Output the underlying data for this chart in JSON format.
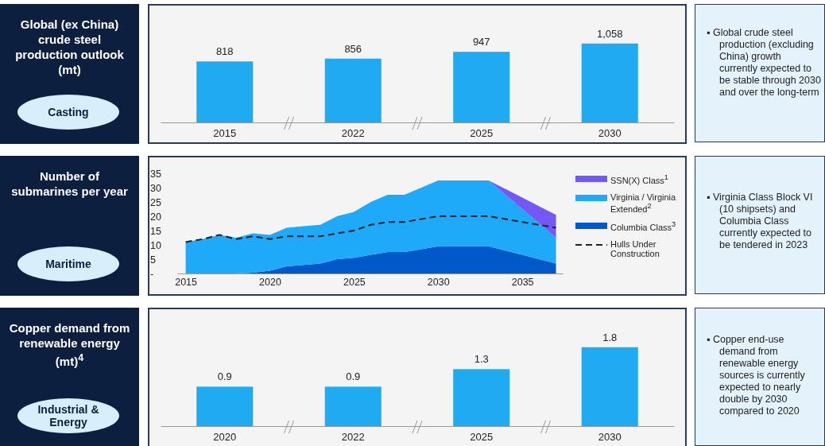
{
  "chart_data": [
    {
      "type": "bar",
      "title": "Global (ex China) crude steel production outlook (mt)",
      "categories": [
        "2015",
        "2022",
        "2025",
        "2030"
      ],
      "values": [
        818,
        856,
        947,
        1058
      ],
      "value_labels": [
        "818",
        "856",
        "947",
        "1,058"
      ],
      "color": "#20aaf2",
      "annotations": [
        "Casting",
        "▪ Global crude steel production (excluding China) growth currently expected to be stable through 2030 and over the long-term"
      ]
    },
    {
      "type": "area",
      "title": "Number of submarines per year",
      "stacked": true,
      "legend": "right",
      "marker": "none",
      "x": [
        2015,
        2016,
        2017,
        2018,
        2019,
        2020,
        2021,
        2022,
        2023,
        2024,
        2025,
        2026,
        2027,
        2028,
        2029,
        2030,
        2031,
        2032,
        2033,
        2034,
        2035,
        2036,
        2037
      ],
      "xlim": [
        2014.5,
        2037.4
      ],
      "xticks": [
        2015,
        2020,
        2025,
        2030,
        2035
      ],
      "ylim": [
        0,
        35
      ],
      "yticks": [
        {
          "value": 0,
          "label": "-"
        },
        5,
        10,
        15,
        20,
        25,
        30,
        35
      ],
      "series": [
        {
          "name": "Columbia Class$^{3}$",
          "color": "#0058c9",
          "values": [
            0,
            0,
            0,
            0,
            0.3,
            1,
            2.5,
            3,
            3.5,
            5,
            5.5,
            6.5,
            7.5,
            7.5,
            8.5,
            9.5,
            9.5,
            9.5,
            9.5,
            8,
            6.5,
            5,
            3.5
          ]
        },
        {
          "name": "Virginia / Virginia Extended$^{2}$",
          "color": "#1eaaf8",
          "values": [
            11,
            12,
            13.5,
            12.5,
            13.7,
            12.5,
            13.5,
            13.5,
            13.5,
            15,
            16,
            18.5,
            20,
            20,
            21.5,
            23,
            23,
            23,
            23,
            19.5,
            16,
            12.5,
            9
          ]
        },
        {
          "name": "SSN(X) Class$^{1}$",
          "color": "#7458f5",
          "values": [
            0,
            0,
            0,
            0,
            0,
            0,
            0,
            0,
            0,
            0,
            0,
            0,
            0,
            0,
            0,
            0,
            0,
            0,
            0,
            2,
            4,
            6,
            8
          ]
        },
        {
          "name": "Hulls Under Construction",
          "type": "line",
          "line_style": "dashed",
          "color": "#222222",
          "values": [
            11,
            12,
            13.5,
            12,
            13,
            12,
            13,
            13,
            13,
            14,
            15,
            17,
            18,
            18,
            19,
            20,
            20,
            20,
            20,
            19,
            18,
            17,
            16
          ]
        }
      ],
      "annotations": [
        "Maritime",
        "▪ Virginia Class Block VI (10 shipsets) and Columbia Class currently expected to be tendered in 2023"
      ]
    },
    {
      "type": "bar",
      "title": "Copper demand from renewable energy (mt)$^{4}$",
      "categories": [
        "2020",
        "2022",
        "2025",
        "2030"
      ],
      "values": [
        0.9,
        0.9,
        1.3,
        1.8
      ],
      "data_labels": true,
      "color": "#20aaf2",
      "annotations": [
        "Industrial & Energy",
        "▪ Copper end-use demand from renewable energy sources is currently expected to nearly double by 2030 compared to 2020"
      ]
    }
  ]
}
